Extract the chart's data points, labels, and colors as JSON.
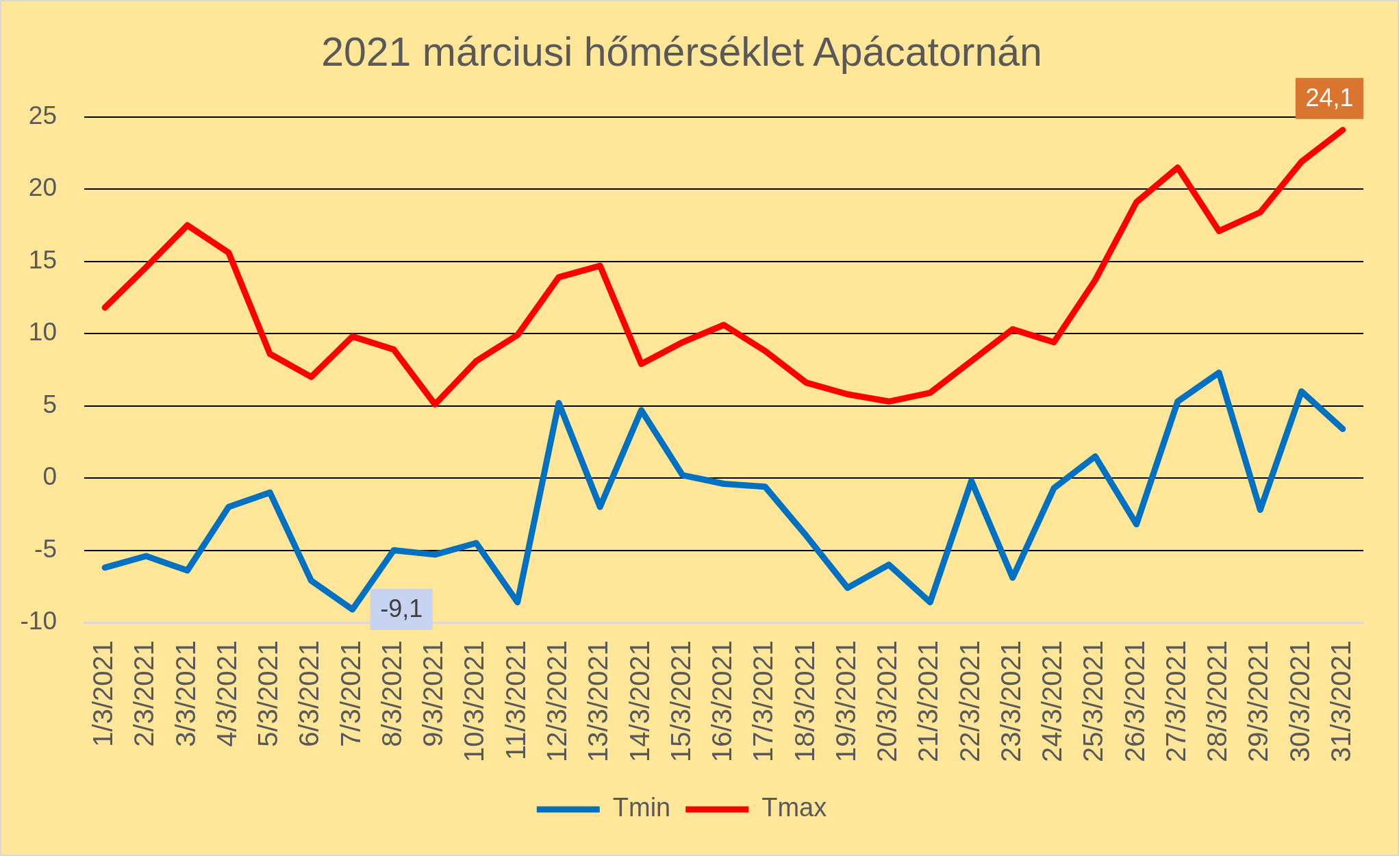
{
  "chart_data": {
    "type": "line",
    "title": "2021 márciusi hőmérséklet Apácatornán",
    "categories": [
      "1/3/2021",
      "2/3/2021",
      "3/3/2021",
      "4/3/2021",
      "5/3/2021",
      "6/3/2021",
      "7/3/2021",
      "8/3/2021",
      "9/3/2021",
      "10/3/2021",
      "11/3/2021",
      "12/3/2021",
      "13/3/2021",
      "14/3/2021",
      "15/3/2021",
      "16/3/2021",
      "17/3/2021",
      "18/3/2021",
      "19/3/2021",
      "20/3/2021",
      "21/3/2021",
      "22/3/2021",
      "23/3/2021",
      "24/3/2021",
      "25/3/2021",
      "26/3/2021",
      "27/3/2021",
      "28/3/2021",
      "29/3/2021",
      "30/3/2021",
      "31/3/2021"
    ],
    "series": [
      {
        "name": "Tmin",
        "color": "#0070c0",
        "values": [
          -6.2,
          -5.4,
          -6.4,
          -2.0,
          -1.0,
          -7.1,
          -9.1,
          -5.0,
          -5.3,
          -4.5,
          -8.6,
          5.2,
          -2.0,
          4.7,
          0.2,
          -0.4,
          -0.6,
          -4.0,
          -7.6,
          -6.0,
          -8.6,
          -0.2,
          -6.9,
          -0.7,
          1.5,
          -3.2,
          5.3,
          7.3,
          -2.2,
          6.0,
          3.4
        ],
        "value_labels": [
          null,
          null,
          null,
          null,
          null,
          null,
          "-9,1",
          null,
          null,
          null,
          null,
          null,
          null,
          null,
          null,
          null,
          null,
          null,
          null,
          null,
          null,
          null,
          null,
          null,
          null,
          null,
          null,
          null,
          null,
          null,
          null
        ]
      },
      {
        "name": "Tmax",
        "color": "#ff0000",
        "values": [
          11.8,
          14.6,
          17.5,
          15.6,
          8.6,
          7.0,
          9.8,
          8.9,
          5.1,
          8.1,
          9.9,
          13.9,
          14.7,
          7.9,
          9.4,
          10.6,
          8.8,
          6.6,
          5.8,
          5.3,
          5.9,
          8.1,
          10.3,
          9.4,
          13.7,
          19.1,
          21.5,
          17.1,
          18.4,
          21.9,
          24.1
        ],
        "value_labels": [
          null,
          null,
          null,
          null,
          null,
          null,
          null,
          null,
          null,
          null,
          null,
          null,
          null,
          null,
          null,
          null,
          null,
          null,
          null,
          null,
          null,
          null,
          null,
          null,
          null,
          null,
          null,
          null,
          null,
          null,
          "24,1"
        ]
      }
    ],
    "ylim": [
      -10,
      25
    ],
    "yticks": [
      -10,
      -5,
      0,
      5,
      10,
      15,
      20,
      25
    ],
    "grid": "y",
    "legend": "bottom",
    "marker": "none",
    "line_style": "solid"
  }
}
